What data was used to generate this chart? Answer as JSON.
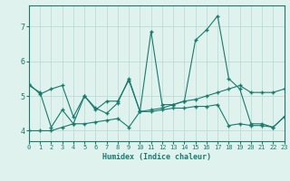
{
  "xlabel": "Humidex (Indice chaleur)",
  "x_values": [
    0,
    1,
    2,
    3,
    4,
    5,
    6,
    7,
    8,
    9,
    10,
    11,
    12,
    13,
    14,
    15,
    16,
    17,
    18,
    19,
    20,
    21,
    22,
    23
  ],
  "line1_y": [
    5.3,
    5.1,
    4.1,
    4.6,
    4.2,
    5.0,
    4.6,
    4.85,
    4.85,
    5.45,
    4.55,
    6.85,
    4.75,
    4.75,
    4.85,
    6.6,
    6.9,
    7.3,
    5.5,
    5.2,
    4.2,
    4.2,
    4.1,
    4.4
  ],
  "line2_y": [
    4.0,
    4.0,
    4.0,
    4.1,
    4.2,
    4.2,
    4.25,
    4.3,
    4.35,
    4.1,
    4.55,
    4.55,
    4.6,
    4.65,
    4.65,
    4.7,
    4.7,
    4.75,
    4.15,
    4.2,
    4.15,
    4.15,
    4.1,
    4.4
  ],
  "line3_y": [
    5.35,
    5.05,
    5.2,
    5.3,
    4.4,
    5.0,
    4.65,
    4.5,
    4.8,
    5.5,
    4.55,
    4.6,
    4.65,
    4.75,
    4.85,
    4.9,
    5.0,
    5.1,
    5.2,
    5.3,
    5.1,
    5.1,
    5.1,
    5.2
  ],
  "line_color": "#1a7a6e",
  "bg_color": "#dff2ee",
  "grid_color": "#b8d8d4",
  "ylim": [
    3.7,
    7.6
  ],
  "xlim": [
    0,
    23
  ],
  "yticks": [
    4,
    5,
    6,
    7
  ],
  "xticks": [
    0,
    1,
    2,
    3,
    4,
    5,
    6,
    7,
    8,
    9,
    10,
    11,
    12,
    13,
    14,
    15,
    16,
    17,
    18,
    19,
    20,
    21,
    22,
    23
  ]
}
